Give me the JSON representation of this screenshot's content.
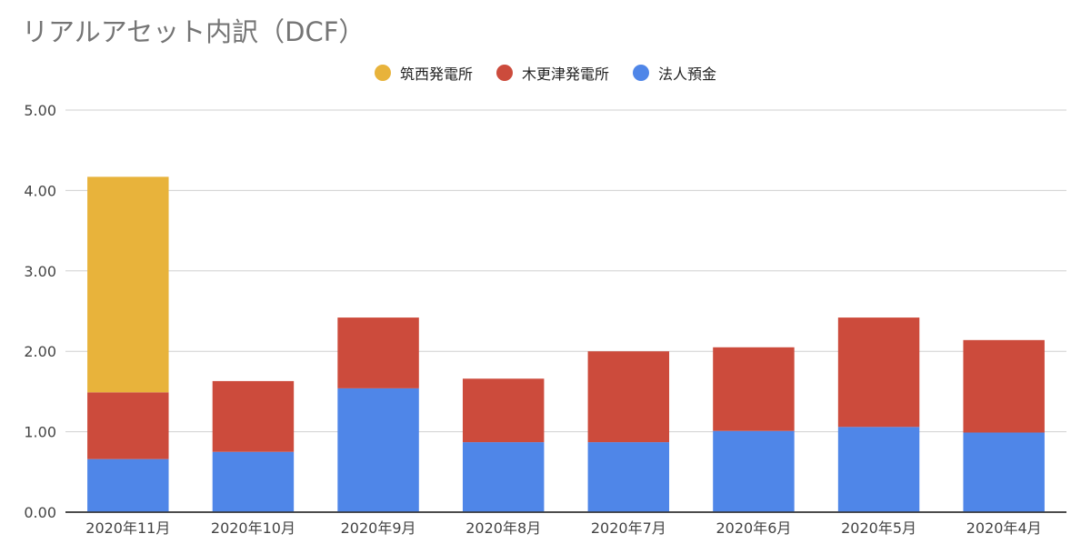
{
  "chart_data": {
    "type": "bar",
    "stacked": true,
    "title": "リアルアセット内訳（DCF）",
    "categories": [
      "2020年11月",
      "2020年10月",
      "2020年9月",
      "2020年8月",
      "2020年7月",
      "2020年6月",
      "2020年5月",
      "2020年4月"
    ],
    "series": [
      {
        "name": "法人預金",
        "color": "#4f86e8",
        "values": [
          0.66,
          0.75,
          1.54,
          0.87,
          0.87,
          1.01,
          1.06,
          0.99
        ]
      },
      {
        "name": "木更津発電所",
        "color": "#cc4b3c",
        "values": [
          0.83,
          0.88,
          0.88,
          0.79,
          1.13,
          1.04,
          1.36,
          1.15
        ]
      },
      {
        "name": "筑西発電所",
        "color": "#e8b33b",
        "values": [
          2.68,
          0,
          0,
          0,
          0,
          0,
          0,
          0
        ]
      }
    ],
    "legend_order": [
      "筑西発電所",
      "木更津発電所",
      "法人預金"
    ],
    "yticks": [
      "0.00",
      "1.00",
      "2.00",
      "3.00",
      "4.00",
      "5.00"
    ],
    "ylim": [
      0,
      5
    ],
    "grid": true,
    "legend_position": "top-center"
  }
}
